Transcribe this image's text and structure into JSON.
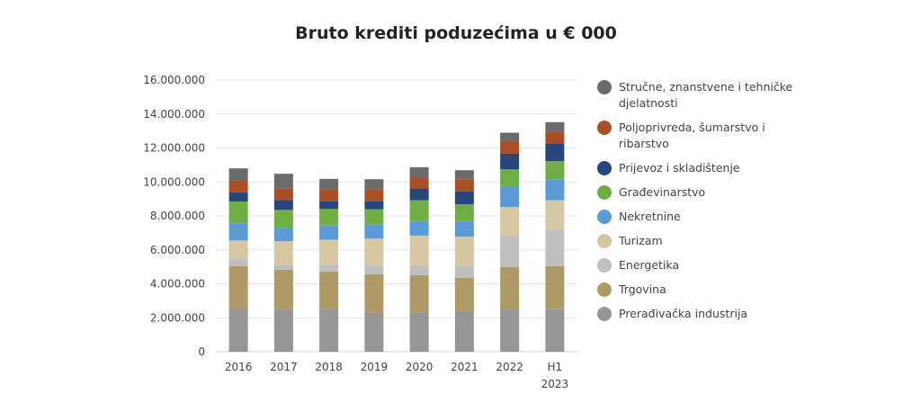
{
  "chart_data": {
    "type": "bar",
    "stacked": true,
    "title": "Bruto krediti poduzećima u € 000",
    "categories": [
      "2016",
      "2017",
      "2018",
      "2019",
      "2020",
      "2021",
      "2022",
      "H1 2023"
    ],
    "ylim": [
      0,
      16000000
    ],
    "yticks": [
      "0",
      "2.000.000",
      "4.000.000",
      "6.000.000",
      "8.000.000",
      "10.000.000",
      "12.000.000",
      "14.000.000",
      "16.000.000"
    ],
    "grid": true,
    "legend_position": "right",
    "series": [
      {
        "name": "Prerađivačka industrija",
        "color": "#969696",
        "values": [
          2570000,
          2510000,
          2510000,
          2300000,
          2300000,
          2390000,
          2510000,
          2530000
        ]
      },
      {
        "name": "Trgovina",
        "color": "#ae9a64",
        "values": [
          2470000,
          2320000,
          2220000,
          2260000,
          2210000,
          1970000,
          2470000,
          2510000
        ]
      },
      {
        "name": "Energetika",
        "color": "#bfbfbf",
        "values": [
          450000,
          300000,
          400000,
          510000,
          580000,
          710000,
          1890000,
          2150000
        ]
      },
      {
        "name": "Turizam",
        "color": "#d6c6a2",
        "values": [
          1060000,
          1380000,
          1470000,
          1590000,
          1750000,
          1700000,
          1650000,
          1730000
        ]
      },
      {
        "name": "Nekretnine",
        "color": "#5b9bd5",
        "values": [
          1010000,
          780000,
          830000,
          850000,
          850000,
          920000,
          1230000,
          1240000
        ]
      },
      {
        "name": "Građevinarstvo",
        "color": "#6fae45",
        "values": [
          1290000,
          1060000,
          980000,
          880000,
          1230000,
          1000000,
          990000,
          1060000
        ]
      },
      {
        "name": "Prijevoz i skladištenje",
        "color": "#27477c",
        "values": [
          530000,
          590000,
          440000,
          480000,
          670000,
          760000,
          920000,
          1060000
        ]
      },
      {
        "name": "Poljoprivreda, šumarstvo i ribarstvo",
        "color": "#a94f26",
        "values": [
          710000,
          670000,
          730000,
          710000,
          660000,
          710000,
          760000,
          670000
        ]
      },
      {
        "name": "Stručne, znanstvene i tehničke djelatnosti",
        "color": "#6b6b6b",
        "values": [
          710000,
          870000,
          600000,
          580000,
          620000,
          530000,
          480000,
          570000
        ]
      }
    ]
  }
}
